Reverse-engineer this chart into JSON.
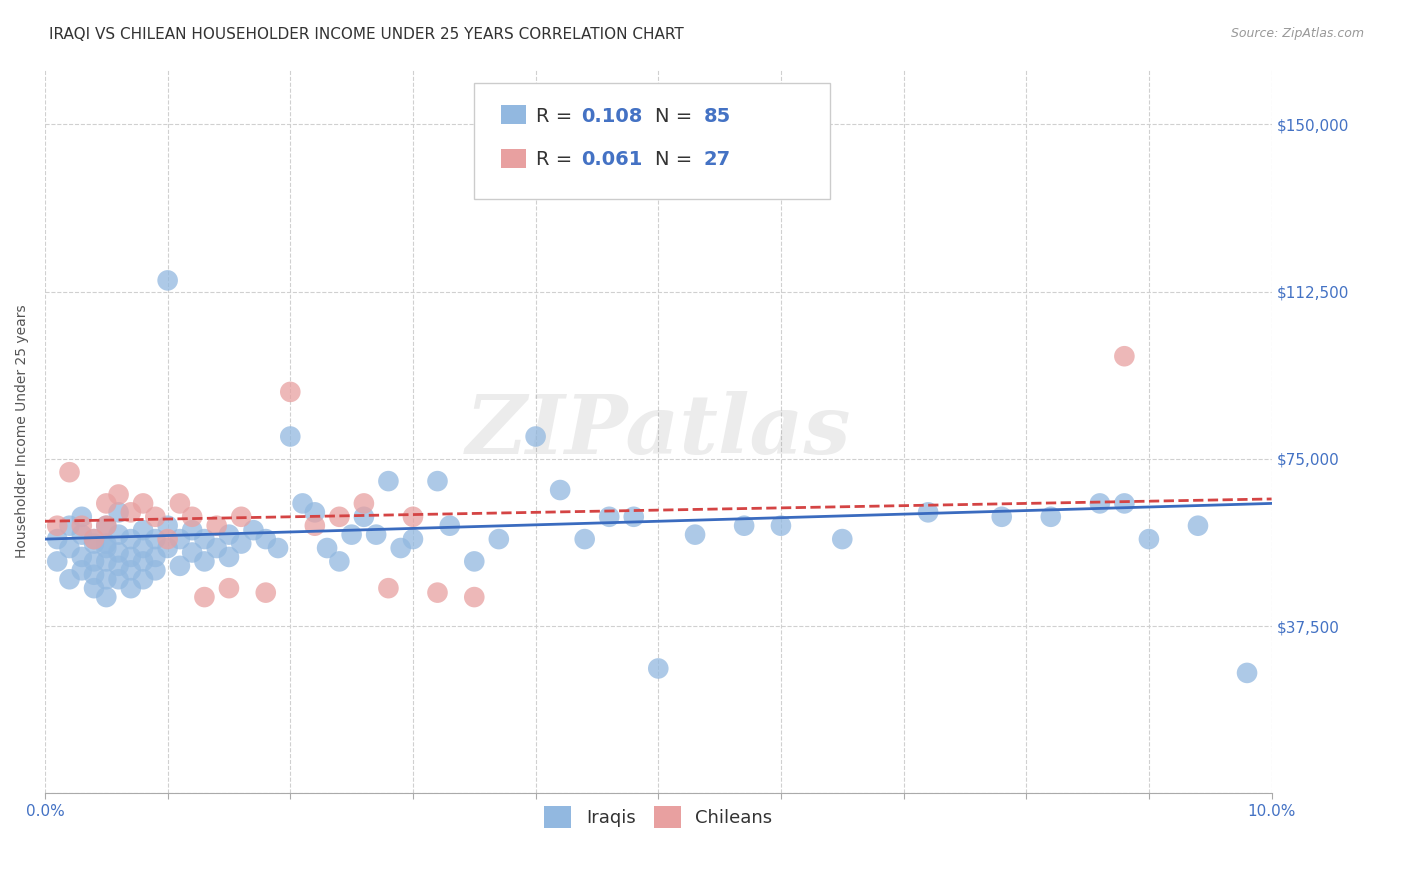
{
  "title": "IRAQI VS CHILEAN HOUSEHOLDER INCOME UNDER 25 YEARS CORRELATION CHART",
  "source": "Source: ZipAtlas.com",
  "ylabel": "Householder Income Under 25 years",
  "xlim": [
    0.0,
    0.1
  ],
  "ylim": [
    0,
    162500
  ],
  "yticks": [
    0,
    37500,
    75000,
    112500,
    150000
  ],
  "ytick_labels": [
    "",
    "$37,500",
    "$75,000",
    "$112,500",
    "$150,000"
  ],
  "iraqi_color": "#92b8e0",
  "chilean_color": "#e8a0a0",
  "iraqi_line_color": "#3a6bbf",
  "chilean_line_color": "#d44444",
  "R_iraqi": 0.108,
  "N_iraqi": 85,
  "R_chilean": 0.061,
  "N_chilean": 27,
  "iraqi_x": [
    0.001,
    0.001,
    0.002,
    0.002,
    0.002,
    0.003,
    0.003,
    0.003,
    0.003,
    0.004,
    0.004,
    0.004,
    0.004,
    0.004,
    0.005,
    0.005,
    0.005,
    0.005,
    0.005,
    0.005,
    0.006,
    0.006,
    0.006,
    0.006,
    0.006,
    0.007,
    0.007,
    0.007,
    0.007,
    0.008,
    0.008,
    0.008,
    0.008,
    0.009,
    0.009,
    0.009,
    0.01,
    0.01,
    0.01,
    0.011,
    0.011,
    0.012,
    0.012,
    0.013,
    0.013,
    0.014,
    0.015,
    0.015,
    0.016,
    0.017,
    0.018,
    0.019,
    0.02,
    0.021,
    0.022,
    0.023,
    0.024,
    0.025,
    0.026,
    0.027,
    0.028,
    0.029,
    0.03,
    0.032,
    0.033,
    0.035,
    0.037,
    0.04,
    0.042,
    0.044,
    0.046,
    0.048,
    0.05,
    0.053,
    0.057,
    0.06,
    0.065,
    0.072,
    0.078,
    0.082,
    0.086,
    0.088,
    0.09,
    0.094,
    0.098
  ],
  "iraqi_y": [
    57000,
    52000,
    60000,
    55000,
    48000,
    58000,
    53000,
    50000,
    62000,
    56000,
    52000,
    49000,
    57000,
    46000,
    60000,
    55000,
    52000,
    48000,
    56000,
    44000,
    58000,
    54000,
    51000,
    48000,
    63000,
    57000,
    53000,
    50000,
    46000,
    59000,
    55000,
    52000,
    48000,
    57000,
    53000,
    50000,
    115000,
    60000,
    55000,
    57000,
    51000,
    59000,
    54000,
    57000,
    52000,
    55000,
    58000,
    53000,
    56000,
    59000,
    57000,
    55000,
    80000,
    65000,
    63000,
    55000,
    52000,
    58000,
    62000,
    58000,
    70000,
    55000,
    57000,
    70000,
    60000,
    52000,
    57000,
    80000,
    68000,
    57000,
    62000,
    62000,
    28000,
    58000,
    60000,
    60000,
    57000,
    63000,
    62000,
    62000,
    65000,
    65000,
    57000,
    60000,
    27000
  ],
  "chilean_x": [
    0.001,
    0.002,
    0.003,
    0.004,
    0.005,
    0.005,
    0.006,
    0.007,
    0.008,
    0.009,
    0.01,
    0.011,
    0.012,
    0.013,
    0.014,
    0.015,
    0.016,
    0.018,
    0.02,
    0.022,
    0.024,
    0.026,
    0.028,
    0.03,
    0.032,
    0.035,
    0.088
  ],
  "chilean_y": [
    60000,
    72000,
    60000,
    57000,
    65000,
    60000,
    67000,
    63000,
    65000,
    62000,
    57000,
    65000,
    62000,
    44000,
    60000,
    46000,
    62000,
    45000,
    90000,
    60000,
    62000,
    65000,
    46000,
    62000,
    45000,
    44000,
    98000
  ],
  "watermark": "ZIPatlas",
  "background_color": "#ffffff",
  "grid_color": "#d0d0d0",
  "title_fontsize": 11,
  "axis_label_fontsize": 10,
  "tick_fontsize": 11,
  "legend_fontsize": 14
}
